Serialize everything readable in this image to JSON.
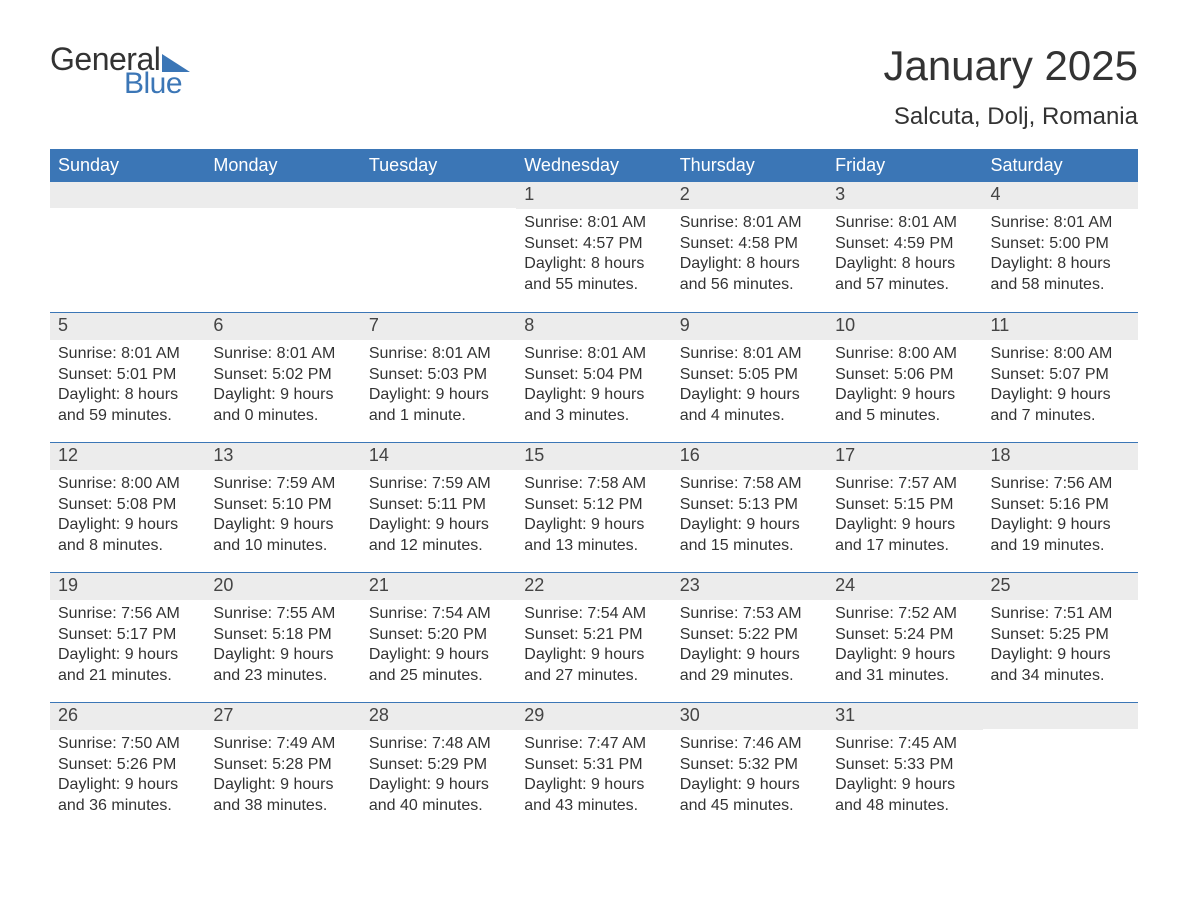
{
  "logo": {
    "word1": "General",
    "word2": "Blue"
  },
  "title": "January 2025",
  "location": "Salcuta, Dolj, Romania",
  "colors": {
    "brand_blue": "#3b76b6",
    "header_bg": "#3b76b6",
    "header_text": "#ffffff",
    "daynum_bg": "#ececec",
    "text": "#333333",
    "page_bg": "#ffffff"
  },
  "days_of_week": [
    "Sunday",
    "Monday",
    "Tuesday",
    "Wednesday",
    "Thursday",
    "Friday",
    "Saturday"
  ],
  "weeks": [
    [
      null,
      null,
      null,
      {
        "n": "1",
        "sunrise": "8:01 AM",
        "sunset": "4:57 PM",
        "daylight": "8 hours and 55 minutes."
      },
      {
        "n": "2",
        "sunrise": "8:01 AM",
        "sunset": "4:58 PM",
        "daylight": "8 hours and 56 minutes."
      },
      {
        "n": "3",
        "sunrise": "8:01 AM",
        "sunset": "4:59 PM",
        "daylight": "8 hours and 57 minutes."
      },
      {
        "n": "4",
        "sunrise": "8:01 AM",
        "sunset": "5:00 PM",
        "daylight": "8 hours and 58 minutes."
      }
    ],
    [
      {
        "n": "5",
        "sunrise": "8:01 AM",
        "sunset": "5:01 PM",
        "daylight": "8 hours and 59 minutes."
      },
      {
        "n": "6",
        "sunrise": "8:01 AM",
        "sunset": "5:02 PM",
        "daylight": "9 hours and 0 minutes."
      },
      {
        "n": "7",
        "sunrise": "8:01 AM",
        "sunset": "5:03 PM",
        "daylight": "9 hours and 1 minute."
      },
      {
        "n": "8",
        "sunrise": "8:01 AM",
        "sunset": "5:04 PM",
        "daylight": "9 hours and 3 minutes."
      },
      {
        "n": "9",
        "sunrise": "8:01 AM",
        "sunset": "5:05 PM",
        "daylight": "9 hours and 4 minutes."
      },
      {
        "n": "10",
        "sunrise": "8:00 AM",
        "sunset": "5:06 PM",
        "daylight": "9 hours and 5 minutes."
      },
      {
        "n": "11",
        "sunrise": "8:00 AM",
        "sunset": "5:07 PM",
        "daylight": "9 hours and 7 minutes."
      }
    ],
    [
      {
        "n": "12",
        "sunrise": "8:00 AM",
        "sunset": "5:08 PM",
        "daylight": "9 hours and 8 minutes."
      },
      {
        "n": "13",
        "sunrise": "7:59 AM",
        "sunset": "5:10 PM",
        "daylight": "9 hours and 10 minutes."
      },
      {
        "n": "14",
        "sunrise": "7:59 AM",
        "sunset": "5:11 PM",
        "daylight": "9 hours and 12 minutes."
      },
      {
        "n": "15",
        "sunrise": "7:58 AM",
        "sunset": "5:12 PM",
        "daylight": "9 hours and 13 minutes."
      },
      {
        "n": "16",
        "sunrise": "7:58 AM",
        "sunset": "5:13 PM",
        "daylight": "9 hours and 15 minutes."
      },
      {
        "n": "17",
        "sunrise": "7:57 AM",
        "sunset": "5:15 PM",
        "daylight": "9 hours and 17 minutes."
      },
      {
        "n": "18",
        "sunrise": "7:56 AM",
        "sunset": "5:16 PM",
        "daylight": "9 hours and 19 minutes."
      }
    ],
    [
      {
        "n": "19",
        "sunrise": "7:56 AM",
        "sunset": "5:17 PM",
        "daylight": "9 hours and 21 minutes."
      },
      {
        "n": "20",
        "sunrise": "7:55 AM",
        "sunset": "5:18 PM",
        "daylight": "9 hours and 23 minutes."
      },
      {
        "n": "21",
        "sunrise": "7:54 AM",
        "sunset": "5:20 PM",
        "daylight": "9 hours and 25 minutes."
      },
      {
        "n": "22",
        "sunrise": "7:54 AM",
        "sunset": "5:21 PM",
        "daylight": "9 hours and 27 minutes."
      },
      {
        "n": "23",
        "sunrise": "7:53 AM",
        "sunset": "5:22 PM",
        "daylight": "9 hours and 29 minutes."
      },
      {
        "n": "24",
        "sunrise": "7:52 AM",
        "sunset": "5:24 PM",
        "daylight": "9 hours and 31 minutes."
      },
      {
        "n": "25",
        "sunrise": "7:51 AM",
        "sunset": "5:25 PM",
        "daylight": "9 hours and 34 minutes."
      }
    ],
    [
      {
        "n": "26",
        "sunrise": "7:50 AM",
        "sunset": "5:26 PM",
        "daylight": "9 hours and 36 minutes."
      },
      {
        "n": "27",
        "sunrise": "7:49 AM",
        "sunset": "5:28 PM",
        "daylight": "9 hours and 38 minutes."
      },
      {
        "n": "28",
        "sunrise": "7:48 AM",
        "sunset": "5:29 PM",
        "daylight": "9 hours and 40 minutes."
      },
      {
        "n": "29",
        "sunrise": "7:47 AM",
        "sunset": "5:31 PM",
        "daylight": "9 hours and 43 minutes."
      },
      {
        "n": "30",
        "sunrise": "7:46 AM",
        "sunset": "5:32 PM",
        "daylight": "9 hours and 45 minutes."
      },
      {
        "n": "31",
        "sunrise": "7:45 AM",
        "sunset": "5:33 PM",
        "daylight": "9 hours and 48 minutes."
      },
      null
    ]
  ],
  "labels": {
    "sunrise": "Sunrise: ",
    "sunset": "Sunset: ",
    "daylight": "Daylight: "
  }
}
